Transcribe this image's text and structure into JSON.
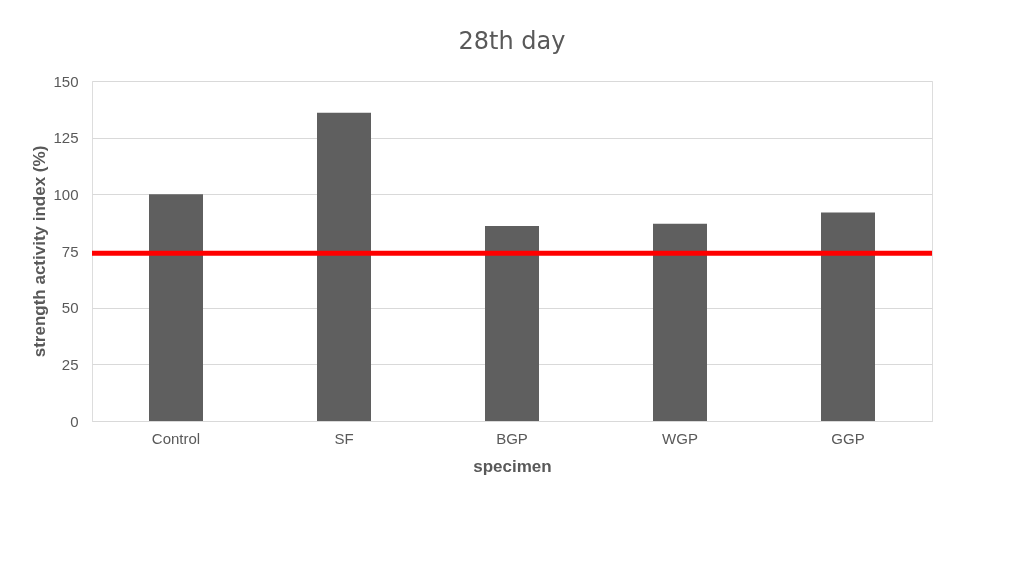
{
  "chart_data": {
    "type": "bar",
    "title": "28th day",
    "xlabel": "specimen",
    "ylabel": "strength activity index (%)",
    "categories": [
      "Control",
      "SF",
      "BGP",
      "WGP",
      "GGP"
    ],
    "series": [
      {
        "color": "#5f5f5f",
        "values": [
          100,
          136,
          86,
          87,
          92
        ]
      }
    ],
    "ylim": [
      0,
      150
    ],
    "yticks": [
      0,
      25,
      50,
      75,
      100,
      125,
      150
    ],
    "grid": "y",
    "ref_lines": [
      {
        "axis": "y",
        "value": 74,
        "color": "#ff0000"
      }
    ]
  }
}
